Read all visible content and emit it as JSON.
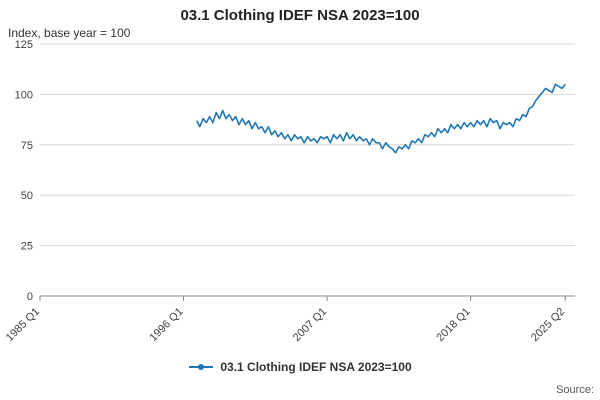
{
  "header": {
    "title": "03.1 Clothing IDEF NSA 2023=100"
  },
  "chart_note": "Index, base year = 100",
  "legend": {
    "label": "03.1 Clothing IDEF NSA 2023=100"
  },
  "source": {
    "label": "Source:"
  },
  "chart_data": {
    "type": "line",
    "title": "03.1 Clothing IDEF NSA 2023=100",
    "ylabel": "Index, base year = 100",
    "xlabel": "",
    "ylim": [
      0,
      125
    ],
    "yticks": [
      0,
      25,
      50,
      75,
      100,
      125
    ],
    "x_domain": [
      1985.0,
      2026.0
    ],
    "xticks": [
      {
        "label": "1985 Q1",
        "year": 1985.0
      },
      {
        "label": "1996 Q1",
        "year": 1996.0
      },
      {
        "label": "2007 Q1",
        "year": 2007.0
      },
      {
        "label": "2018 Q1",
        "year": 2018.0
      },
      {
        "label": "2025 Q2",
        "year": 2025.25
      }
    ],
    "grid": true,
    "legend_position": "bottom",
    "colors": {
      "series": "#1f77b4",
      "grid": "#d9d9d9",
      "axis": "#888888"
    },
    "series": [
      {
        "name": "03.1 Clothing IDEF NSA 2023=100",
        "color": "#1f77b4",
        "frequency": "quarterly",
        "start_year": 1997.0,
        "step_years": 0.25,
        "values": [
          87,
          84,
          88,
          86,
          89,
          86,
          91,
          88,
          92,
          88,
          90,
          87,
          89,
          85,
          88,
          85,
          87,
          83,
          86,
          83,
          84,
          81,
          84,
          80,
          82,
          79,
          81,
          78,
          80,
          77,
          80,
          78,
          79,
          76,
          79,
          77,
          78,
          76,
          79,
          78,
          79,
          76,
          80,
          78,
          80,
          77,
          81,
          78,
          80,
          77,
          79,
          77,
          78,
          75,
          78,
          76,
          76,
          73,
          76,
          74,
          73,
          71,
          74,
          73,
          75,
          73,
          77,
          76,
          78,
          76,
          80,
          79,
          81,
          79,
          83,
          81,
          83,
          81,
          85,
          83,
          85,
          83,
          86,
          84,
          86,
          84,
          87,
          85,
          87,
          84,
          88,
          86,
          87,
          83,
          86,
          85,
          86,
          84,
          88,
          87,
          90,
          89,
          93,
          94,
          97,
          99,
          101,
          103,
          102,
          101,
          105,
          104,
          103,
          105
        ]
      }
    ]
  }
}
